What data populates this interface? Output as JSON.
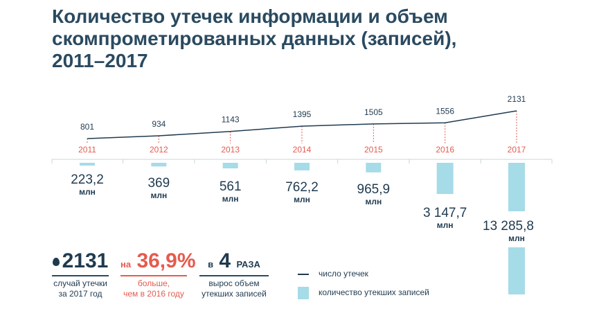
{
  "title_lines": [
    "Количество утечек информации и объем",
    "скомпрометированных данных (записей),",
    "2011–2017"
  ],
  "colors": {
    "line": "#1f3a4f",
    "bar": "#a6dbe8",
    "year": "#e55a4e",
    "text": "#1f3a4f"
  },
  "chart_data": {
    "type": "line+bar",
    "categories": [
      "2011",
      "2012",
      "2013",
      "2014",
      "2015",
      "2016",
      "2017"
    ],
    "series": [
      {
        "name": "число утечек",
        "type": "line",
        "values": [
          801,
          934,
          1143,
          1395,
          1505,
          1556,
          2131
        ]
      },
      {
        "name": "количество утекших записей",
        "type": "bar",
        "unit": "млн",
        "values": [
          223.2,
          369,
          561,
          762.2,
          965.9,
          3147.7,
          13285.8
        ],
        "labels": [
          "223,2",
          "369",
          "561",
          "762,2",
          "965,9",
          "3 147,7",
          "13 285,8"
        ]
      }
    ],
    "unit_label": "млн",
    "line_labels": [
      "801",
      "934",
      "1143",
      "1395",
      "1505",
      "1556",
      "2131"
    ]
  },
  "stats": {
    "leaks": {
      "value": "2131",
      "caption_1": "случай утечки",
      "caption_2": "за 2017 год"
    },
    "growth": {
      "prefix": "на",
      "value": "36,9%",
      "caption_1": "больше,",
      "caption_2": "чем в 2016 году"
    },
    "volume": {
      "prefix": "в",
      "value": "4",
      "suffix": "РАЗА",
      "caption_1": "вырос объем",
      "caption_2": "утекших записей"
    }
  },
  "legend": {
    "line": "число утечек",
    "bar": "количество утекших записей"
  }
}
